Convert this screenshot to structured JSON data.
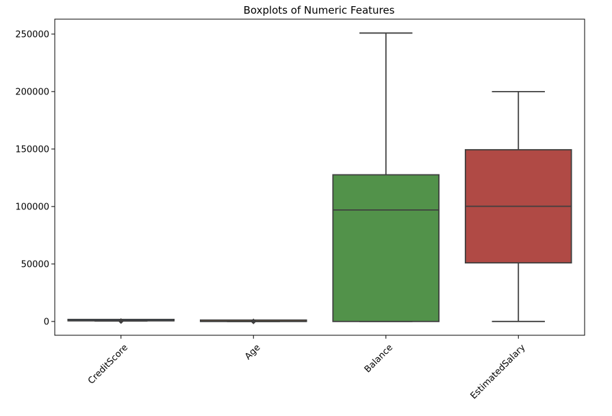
{
  "chart_data": {
    "type": "box",
    "title": "Boxplots of Numeric Features",
    "xlabel": "",
    "ylabel": "",
    "ylim": [
      -12000,
      263000
    ],
    "yticks": [
      0,
      50000,
      100000,
      150000,
      200000,
      250000
    ],
    "ytick_labels": [
      "0",
      "50000",
      "100000",
      "150000",
      "200000",
      "250000"
    ],
    "categories": [
      "CreditScore",
      "Age",
      "Balance",
      "EstimatedSalary"
    ],
    "xtick_rotation_deg": 45,
    "grid": false,
    "legend": "none",
    "boxes": [
      {
        "name": "CreditScore",
        "color": "#3b6ca8",
        "whislo": 383,
        "q1": 584,
        "med": 652,
        "q3": 718,
        "whishi": 850,
        "outliers": [
          350,
          358,
          359,
          363,
          365,
          367,
          373,
          376,
          382
        ]
      },
      {
        "name": "Age",
        "color": "#d9883a",
        "whislo": 18,
        "q1": 32,
        "med": 37,
        "q3": 44,
        "whishi": 62,
        "outliers": [
          63,
          66,
          70,
          75,
          80,
          85,
          92
        ]
      },
      {
        "name": "Balance",
        "color": "#52924a",
        "whislo": 0,
        "q1": 0,
        "med": 97000,
        "q3": 127600,
        "whishi": 250900,
        "outliers": []
      },
      {
        "name": "EstimatedSalary",
        "color": "#b04a45",
        "whislo": 10,
        "q1": 51000,
        "med": 100200,
        "q3": 149400,
        "whishi": 200000,
        "outliers": []
      }
    ]
  }
}
